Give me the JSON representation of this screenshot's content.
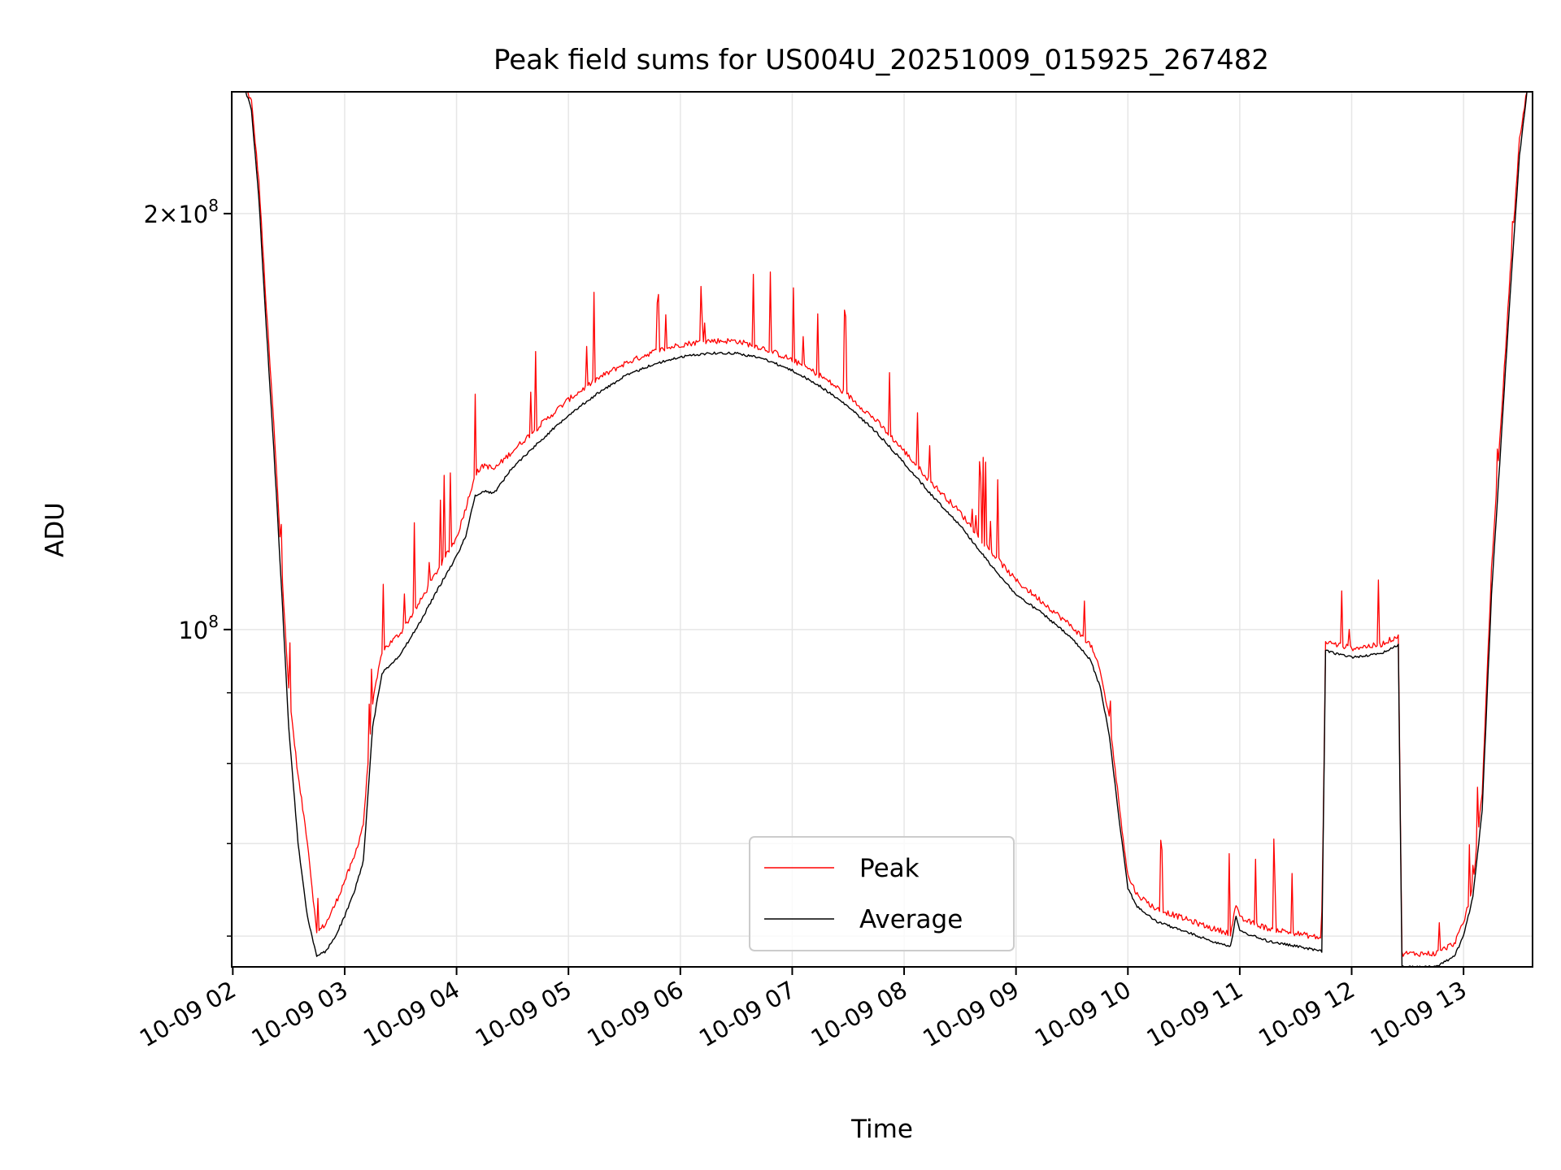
{
  "chart_data": {
    "type": "line",
    "title": "Peak field sums for US004U_20251009_015925_267482",
    "xlabel": "Time",
    "ylabel": "ADU",
    "y_scale": "log",
    "ylim": [
      57000000,
      245000000
    ],
    "xlim": [
      "2025-10-09 01:59:25",
      "2025-10-09 13:37:00"
    ],
    "grid": true,
    "legend_position": "lower center",
    "x_tick_labels": [
      "10-09 02",
      "10-09 03",
      "10-09 04",
      "10-09 05",
      "10-09 06",
      "10-09 07",
      "10-09 08",
      "10-09 09",
      "10-09 10",
      "10-09 11",
      "10-09 12",
      "10-09 13"
    ],
    "x_ticks": [
      "2025-10-09 02:00",
      "2025-10-09 03:00",
      "2025-10-09 04:00",
      "2025-10-09 05:00",
      "2025-10-09 06:00",
      "2025-10-09 07:00",
      "2025-10-09 08:00",
      "2025-10-09 09:00",
      "2025-10-09 10:00",
      "2025-10-09 11:00",
      "2025-10-09 12:00",
      "2025-10-09 13:00"
    ],
    "y_tick_labels": [
      {
        "value": 200000000,
        "mantissa": "2",
        "exponent": "8"
      },
      {
        "value": 100000000,
        "mantissa": "",
        "exponent": "8"
      }
    ],
    "y_minor_ticks": [
      60000000,
      70000000,
      80000000,
      90000000
    ],
    "series": [
      {
        "name": "Peak",
        "color": "#ff0000",
        "x": [
          "2025-10-09 02:07",
          "2025-10-09 02:10",
          "2025-10-09 02:14",
          "2025-10-09 02:18",
          "2025-10-09 02:22",
          "2025-10-09 02:26",
          "2025-10-09 02:30",
          "2025-10-09 02:35",
          "2025-10-09 02:40",
          "2025-10-09 02:45",
          "2025-10-09 02:50",
          "2025-10-09 02:55",
          "2025-10-09 03:00",
          "2025-10-09 03:05",
          "2025-10-09 03:10",
          "2025-10-09 03:15",
          "2025-10-09 03:20",
          "2025-10-09 03:30",
          "2025-10-09 03:40",
          "2025-10-09 03:50",
          "2025-10-09 04:00",
          "2025-10-09 04:05",
          "2025-10-09 04:10",
          "2025-10-09 04:15",
          "2025-10-09 04:20",
          "2025-10-09 04:30",
          "2025-10-09 04:45",
          "2025-10-09 05:00",
          "2025-10-09 05:15",
          "2025-10-09 05:30",
          "2025-10-09 05:45",
          "2025-10-09 06:00",
          "2025-10-09 06:15",
          "2025-10-09 06:30",
          "2025-10-09 06:45",
          "2025-10-09 07:00",
          "2025-10-09 07:15",
          "2025-10-09 07:30",
          "2025-10-09 07:45",
          "2025-10-09 08:00",
          "2025-10-09 08:15",
          "2025-10-09 08:30",
          "2025-10-09 08:45",
          "2025-10-09 09:00",
          "2025-10-09 09:15",
          "2025-10-09 09:30",
          "2025-10-09 09:40",
          "2025-10-09 09:45",
          "2025-10-09 09:50",
          "2025-10-09 09:55",
          "2025-10-09 10:00",
          "2025-10-09 10:05",
          "2025-10-09 10:15",
          "2025-10-09 10:30",
          "2025-10-09 10:45",
          "2025-10-09 10:55",
          "2025-10-09 10:58",
          "2025-10-09 11:00",
          "2025-10-09 11:15",
          "2025-10-09 11:30",
          "2025-10-09 11:44",
          "2025-10-09 11:46",
          "2025-10-09 12:00",
          "2025-10-09 12:15",
          "2025-10-09 12:25",
          "2025-10-09 12:27",
          "2025-10-09 12:30",
          "2025-10-09 12:45",
          "2025-10-09 12:55",
          "2025-10-09 13:00",
          "2025-10-09 13:05",
          "2025-10-09 13:10",
          "2025-10-09 13:15",
          "2025-10-09 13:20",
          "2025-10-09 13:25",
          "2025-10-09 13:30",
          "2025-10-09 13:34"
        ],
        "values": [
          245000000,
          240000000,
          210000000,
          170000000,
          140000000,
          112000000,
          90000000,
          78000000,
          70000000,
          60000000,
          61000000,
          63000000,
          65500000,
          68000000,
          72000000,
          88000000,
          96000000,
          99000000,
          104000000,
          110000000,
          116000000,
          122000000,
          129000000,
          131000000,
          130000000,
          134000000,
          140000000,
          146000000,
          151000000,
          155000000,
          158000000,
          160000000,
          161000000,
          161000000,
          159000000,
          156000000,
          152000000,
          147000000,
          141000000,
          134000000,
          127000000,
          121000000,
          114000000,
          108000000,
          104000000,
          100000000,
          97000000,
          93000000,
          86000000,
          75000000,
          66000000,
          64000000,
          62500000,
          61500000,
          60500000,
          60000000,
          63000000,
          61500000,
          60500000,
          60000000,
          59500000,
          97500000,
          96500000,
          97000000,
          98500000,
          58000000,
          58000000,
          58000000,
          59000000,
          61000000,
          65000000,
          76000000,
          110000000,
          140000000,
          180000000,
          225000000,
          245000000
        ]
      },
      {
        "name": "Average",
        "color": "#000000",
        "x": [
          "2025-10-09 02:07",
          "2025-10-09 02:10",
          "2025-10-09 02:14",
          "2025-10-09 02:18",
          "2025-10-09 02:22",
          "2025-10-09 02:26",
          "2025-10-09 02:30",
          "2025-10-09 02:35",
          "2025-10-09 02:40",
          "2025-10-09 02:45",
          "2025-10-09 02:50",
          "2025-10-09 02:55",
          "2025-10-09 03:00",
          "2025-10-09 03:05",
          "2025-10-09 03:10",
          "2025-10-09 03:15",
          "2025-10-09 03:20",
          "2025-10-09 03:30",
          "2025-10-09 03:40",
          "2025-10-09 03:50",
          "2025-10-09 04:00",
          "2025-10-09 04:05",
          "2025-10-09 04:10",
          "2025-10-09 04:15",
          "2025-10-09 04:20",
          "2025-10-09 04:30",
          "2025-10-09 04:45",
          "2025-10-09 05:00",
          "2025-10-09 05:15",
          "2025-10-09 05:30",
          "2025-10-09 05:45",
          "2025-10-09 06:00",
          "2025-10-09 06:15",
          "2025-10-09 06:30",
          "2025-10-09 06:45",
          "2025-10-09 07:00",
          "2025-10-09 07:15",
          "2025-10-09 07:30",
          "2025-10-09 07:45",
          "2025-10-09 08:00",
          "2025-10-09 08:15",
          "2025-10-09 08:30",
          "2025-10-09 08:45",
          "2025-10-09 09:00",
          "2025-10-09 09:15",
          "2025-10-09 09:30",
          "2025-10-09 09:40",
          "2025-10-09 09:45",
          "2025-10-09 09:50",
          "2025-10-09 09:55",
          "2025-10-09 10:00",
          "2025-10-09 10:05",
          "2025-10-09 10:15",
          "2025-10-09 10:30",
          "2025-10-09 10:45",
          "2025-10-09 10:55",
          "2025-10-09 10:58",
          "2025-10-09 11:00",
          "2025-10-09 11:15",
          "2025-10-09 11:30",
          "2025-10-09 11:44",
          "2025-10-09 11:46",
          "2025-10-09 12:00",
          "2025-10-09 12:15",
          "2025-10-09 12:25",
          "2025-10-09 12:27",
          "2025-10-09 12:30",
          "2025-10-09 12:45",
          "2025-10-09 12:55",
          "2025-10-09 13:00",
          "2025-10-09 13:05",
          "2025-10-09 13:10",
          "2025-10-09 13:15",
          "2025-10-09 13:20",
          "2025-10-09 13:25",
          "2025-10-09 13:30",
          "2025-10-09 13:34"
        ],
        "values": [
          245000000,
          238000000,
          205000000,
          165000000,
          135000000,
          108000000,
          85000000,
          70000000,
          62000000,
          58000000,
          58500000,
          60000000,
          62000000,
          64500000,
          68000000,
          85000000,
          93000000,
          96000000,
          101000000,
          107000000,
          113000000,
          117000000,
          125000000,
          126000000,
          125500000,
          131000000,
          137000000,
          143000000,
          148000000,
          152500000,
          155500000,
          157500000,
          158500000,
          158500000,
          157000000,
          154000000,
          150000000,
          145000000,
          139000000,
          132000000,
          125000000,
          119000000,
          112000000,
          106000000,
          102500000,
          98500000,
          95000000,
          91000000,
          84000000,
          73500000,
          65000000,
          63000000,
          61500000,
          60500000,
          59500000,
          59000000,
          62000000,
          60500000,
          59500000,
          59000000,
          58500000,
          96500000,
          95500000,
          96000000,
          97500000,
          57000000,
          57000000,
          57000000,
          58000000,
          60000000,
          64000000,
          74000000,
          106000000,
          136000000,
          175000000,
          220000000,
          245000000
        ]
      }
    ]
  }
}
